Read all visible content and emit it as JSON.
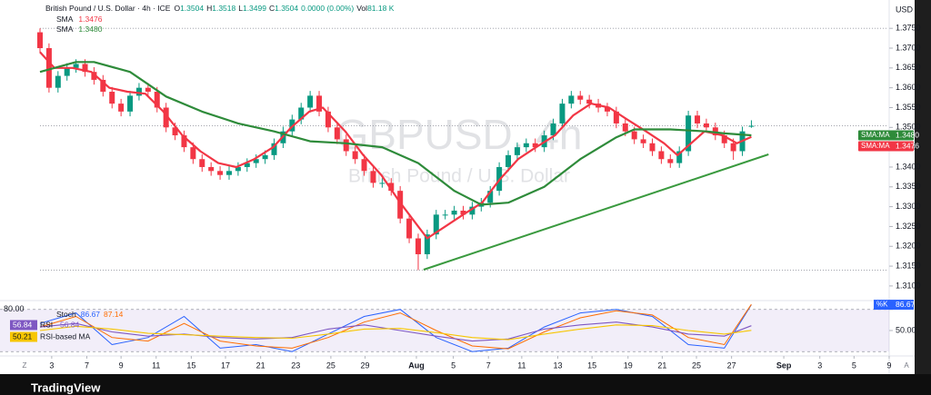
{
  "chart_data": {
    "type": "candlestick",
    "title": "British Pound / U.S. Dollar · 4h · ICE",
    "ohlc_keys": [
      "O",
      "H",
      "L",
      "C"
    ],
    "change": "0.0000 (0.00%)",
    "volume_key": "Vol",
    "volume": "81.18 K",
    "watermark": [
      "GBPUSD, 4h",
      "British Pound / U.S. Dollar"
    ],
    "currency": "USD",
    "tag_label": "SMA:MA",
    "controls": [
      "Z",
      "A"
    ],
    "brand": "TradingView",
    "colors": {
      "up": "#089981",
      "down": "#f23645"
    },
    "grid": false,
    "xlim": [
      0,
      94
    ],
    "ylim": [
      1.307,
      1.381
    ],
    "yticks": [
      {
        "value": 1.375,
        "label": "1.3750"
      },
      {
        "value": 1.37,
        "label": "1.3700"
      },
      {
        "value": 1.365,
        "label": "1.3650"
      },
      {
        "value": 1.36,
        "label": "1.3600"
      },
      {
        "value": 1.355,
        "label": "1.3550"
      },
      {
        "value": 1.35,
        "label": "1.3500"
      },
      {
        "value": 1.345,
        "label": "1.3450"
      },
      {
        "value": 1.34,
        "label": "1.3400"
      },
      {
        "value": 1.335,
        "label": "1.3350"
      },
      {
        "value": 1.33,
        "label": "1.3300"
      },
      {
        "value": 1.325,
        "label": "1.3250"
      },
      {
        "value": 1.32,
        "label": "1.3200"
      },
      {
        "value": 1.315,
        "label": "1.3150"
      },
      {
        "value": 1.31,
        "label": "1.3100"
      }
    ],
    "xticks": [
      {
        "value": 1.3,
        "label": "3"
      },
      {
        "value": 5.2,
        "label": "7"
      },
      {
        "value": 9.0,
        "label": "9"
      },
      {
        "value": 12.9,
        "label": "11"
      },
      {
        "value": 16.8,
        "label": "15"
      },
      {
        "value": 20.6,
        "label": "17"
      },
      {
        "value": 24.5,
        "label": "21"
      },
      {
        "value": 28.4,
        "label": "23"
      },
      {
        "value": 32.3,
        "label": "25"
      },
      {
        "value": 36.1,
        "label": "29"
      },
      {
        "value": 41.8,
        "label": "Aug"
      },
      {
        "value": 45.9,
        "label": "5"
      },
      {
        "value": 49.8,
        "label": "7"
      },
      {
        "value": 53.5,
        "label": "11"
      },
      {
        "value": 57.5,
        "label": "13"
      },
      {
        "value": 61.3,
        "label": "15"
      },
      {
        "value": 65.3,
        "label": "19"
      },
      {
        "value": 69.1,
        "label": "21"
      },
      {
        "value": 72.9,
        "label": "25"
      },
      {
        "value": 76.8,
        "label": "27"
      },
      {
        "value": 82.6,
        "label": "Sep"
      },
      {
        "value": 86.6,
        "label": "3"
      },
      {
        "value": 90.4,
        "label": "5"
      },
      {
        "value": 94.3,
        "label": "9"
      }
    ],
    "reference_lines": [
      1.375,
      1.3504,
      1.314
    ],
    "candles": [
      [
        1.374,
        1.375,
        1.3688,
        1.37
      ],
      [
        1.37,
        1.3712,
        1.3588,
        1.36
      ],
      [
        1.36,
        1.3642,
        1.3588,
        1.363
      ],
      [
        1.363,
        1.3662,
        1.3618,
        1.365
      ],
      [
        1.365,
        1.3672,
        1.3638,
        1.366
      ],
      [
        1.366,
        1.3672,
        1.3628,
        1.364
      ],
      [
        1.364,
        1.3652,
        1.3608,
        1.362
      ],
      [
        1.362,
        1.3632,
        1.3578,
        1.359
      ],
      [
        1.359,
        1.3602,
        1.3548,
        1.356
      ],
      [
        1.356,
        1.3572,
        1.3528,
        1.354
      ],
      [
        1.354,
        1.3592,
        1.3528,
        1.358
      ],
      [
        1.358,
        1.3612,
        1.3568,
        1.36
      ],
      [
        1.36,
        1.3612,
        1.3578,
        1.359
      ],
      [
        1.359,
        1.3602,
        1.3538,
        1.355
      ],
      [
        1.355,
        1.3562,
        1.3488,
        1.35
      ],
      [
        1.35,
        1.3512,
        1.3468,
        1.348
      ],
      [
        1.348,
        1.3492,
        1.3438,
        1.345
      ],
      [
        1.345,
        1.3462,
        1.3408,
        1.342
      ],
      [
        1.342,
        1.3432,
        1.3388,
        1.34
      ],
      [
        1.34,
        1.3412,
        1.3378,
        1.339
      ],
      [
        1.339,
        1.3402,
        1.3368,
        1.338
      ],
      [
        1.338,
        1.3402,
        1.3368,
        1.339
      ],
      [
        1.339,
        1.3412,
        1.3378,
        1.34
      ],
      [
        1.34,
        1.3422,
        1.3388,
        1.341
      ],
      [
        1.341,
        1.3432,
        1.3398,
        1.342
      ],
      [
        1.342,
        1.3442,
        1.3408,
        1.343
      ],
      [
        1.343,
        1.3472,
        1.3418,
        1.346
      ],
      [
        1.346,
        1.3502,
        1.3448,
        1.349
      ],
      [
        1.349,
        1.3532,
        1.3478,
        1.352
      ],
      [
        1.352,
        1.3562,
        1.3508,
        1.355
      ],
      [
        1.355,
        1.3592,
        1.3538,
        1.358
      ],
      [
        1.358,
        1.3592,
        1.3528,
        1.354
      ],
      [
        1.354,
        1.3552,
        1.3488,
        1.35
      ],
      [
        1.35,
        1.3512,
        1.3458,
        1.347
      ],
      [
        1.347,
        1.3482,
        1.3428,
        1.344
      ],
      [
        1.344,
        1.3452,
        1.3408,
        1.342
      ],
      [
        1.342,
        1.3432,
        1.3378,
        1.339
      ],
      [
        1.339,
        1.3402,
        1.3348,
        1.336
      ],
      [
        1.336,
        1.3372,
        1.3348,
        1.336
      ],
      [
        1.336,
        1.3372,
        1.3328,
        1.334
      ],
      [
        1.334,
        1.3352,
        1.3258,
        1.327
      ],
      [
        1.327,
        1.3282,
        1.3208,
        1.322
      ],
      [
        1.322,
        1.3232,
        1.314,
        1.318
      ],
      [
        1.318,
        1.3242,
        1.3168,
        1.323
      ],
      [
        1.323,
        1.3292,
        1.3218,
        1.328
      ],
      [
        1.328,
        1.3292,
        1.3268,
        1.328
      ],
      [
        1.328,
        1.3302,
        1.3268,
        1.329
      ],
      [
        1.329,
        1.3302,
        1.3268,
        1.328
      ],
      [
        1.328,
        1.3312,
        1.3268,
        1.33
      ],
      [
        1.33,
        1.3322,
        1.3288,
        1.331
      ],
      [
        1.331,
        1.3352,
        1.3298,
        1.334
      ],
      [
        1.334,
        1.3412,
        1.3328,
        1.34
      ],
      [
        1.34,
        1.3442,
        1.3388,
        1.343
      ],
      [
        1.343,
        1.3462,
        1.3418,
        1.345
      ],
      [
        1.345,
        1.3472,
        1.3438,
        1.346
      ],
      [
        1.346,
        1.3472,
        1.3438,
        1.345
      ],
      [
        1.345,
        1.3492,
        1.3438,
        1.348
      ],
      [
        1.348,
        1.3522,
        1.3468,
        1.351
      ],
      [
        1.351,
        1.3572,
        1.3498,
        1.356
      ],
      [
        1.356,
        1.3592,
        1.3548,
        1.358
      ],
      [
        1.358,
        1.3592,
        1.3558,
        1.357
      ],
      [
        1.357,
        1.3582,
        1.3548,
        1.356
      ],
      [
        1.356,
        1.3572,
        1.3538,
        1.355
      ],
      [
        1.355,
        1.3562,
        1.3528,
        1.354
      ],
      [
        1.354,
        1.3552,
        1.3498,
        1.351
      ],
      [
        1.351,
        1.3522,
        1.3478,
        1.349
      ],
      [
        1.349,
        1.3502,
        1.3458,
        1.347
      ],
      [
        1.347,
        1.3482,
        1.3448,
        1.346
      ],
      [
        1.346,
        1.3472,
        1.3428,
        1.344
      ],
      [
        1.344,
        1.3452,
        1.3408,
        1.342
      ],
      [
        1.342,
        1.3432,
        1.3398,
        1.341
      ],
      [
        1.341,
        1.3452,
        1.3398,
        1.344
      ],
      [
        1.344,
        1.3542,
        1.3428,
        1.353
      ],
      [
        1.353,
        1.3542,
        1.3498,
        1.351
      ],
      [
        1.351,
        1.3522,
        1.3488,
        1.35
      ],
      [
        1.35,
        1.3512,
        1.3468,
        1.348
      ],
      [
        1.348,
        1.3492,
        1.3448,
        1.346
      ],
      [
        1.346,
        1.3472,
        1.3418,
        1.344
      ],
      [
        1.344,
        1.3502,
        1.3428,
        1.349
      ],
      [
        1.3504,
        1.3518,
        1.3499,
        1.3504
      ]
    ],
    "series": [
      {
        "name": "SMA",
        "color": "#f23645",
        "x": [
          0,
          1.6,
          3.6,
          5.7,
          7.7,
          9.7,
          11.7,
          13.7,
          15.8,
          17.8,
          19.8,
          21.8,
          23.8,
          25.9,
          27.9,
          29.9,
          31.4,
          33.9,
          35.9,
          37.9,
          40.0,
          42.0,
          43.0,
          45.0,
          47.0,
          49.1,
          51.1,
          53.1,
          55.1,
          57.2,
          59.2,
          61.2,
          63.2,
          65.2,
          67.3,
          69.3,
          70.8,
          72.3,
          73.8,
          75.8,
          77.4,
          79
        ],
        "values": [
          1.369,
          1.365,
          1.365,
          1.364,
          1.36,
          1.359,
          1.3585,
          1.354,
          1.348,
          1.344,
          1.341,
          1.34,
          1.342,
          1.345,
          1.35,
          1.354,
          1.355,
          1.349,
          1.343,
          1.338,
          1.331,
          1.325,
          1.322,
          1.325,
          1.328,
          1.331,
          1.337,
          1.342,
          1.345,
          1.348,
          1.353,
          1.356,
          1.355,
          1.352,
          1.349,
          1.346,
          1.343,
          1.346,
          1.349,
          1.348,
          1.346,
          1.3476
        ]
      },
      {
        "name": "SMA",
        "color": "#2e8b3a",
        "value_label": "1.3480",
        "x": [
          0,
          4,
          6,
          10,
          14,
          18,
          22,
          26,
          30,
          34,
          38,
          42,
          46,
          49,
          52,
          56,
          60,
          64,
          66,
          70,
          74,
          76,
          79
        ],
        "values": [
          1.364,
          1.3665,
          1.3665,
          1.364,
          1.3578,
          1.354,
          1.351,
          1.349,
          1.3465,
          1.346,
          1.345,
          1.341,
          1.334,
          1.3305,
          1.331,
          1.335,
          1.342,
          1.3475,
          1.3495,
          1.3495,
          1.349,
          1.3485,
          1.348
        ]
      }
    ],
    "trendline": {
      "color": "#3a9a3f",
      "x": [
        42.6,
        80.9
      ],
      "values": [
        1.3141,
        1.3432
      ]
    },
    "oscillator": {
      "stoch_label": "Stoch",
      "rsi_label": "RSI",
      "rsi_ma_label": "RSI-based MA",
      "ylim": [
        19,
        90
      ],
      "band": [
        20,
        80
      ],
      "yticks": [
        {
          "value": 80,
          "label": "80.00"
        },
        {
          "value": 50,
          "label": "50.00"
        }
      ],
      "x": [
        0,
        4,
        8,
        12,
        16,
        20,
        24,
        28,
        32,
        36,
        40,
        44,
        48,
        52,
        56,
        60,
        64,
        68,
        72,
        76,
        79
      ],
      "series": [
        {
          "name": "%K",
          "color": "#2962ff",
          "values": [
            60,
            75,
            30,
            40,
            70,
            25,
            30,
            20,
            45,
            70,
            80,
            40,
            20,
            25,
            55,
            75,
            80,
            70,
            30,
            25,
            86.67
          ]
        },
        {
          "color": "#ff6d00",
          "values": [
            55,
            70,
            40,
            35,
            60,
            35,
            28,
            25,
            40,
            62,
            75,
            50,
            28,
            24,
            48,
            68,
            78,
            72,
            40,
            30,
            87.14
          ]
        },
        {
          "color": "#7e57c2",
          "values": [
            55,
            60,
            48,
            42,
            45,
            40,
            38,
            40,
            52,
            58,
            50,
            42,
            35,
            38,
            52,
            58,
            62,
            55,
            45,
            42,
            56.84
          ]
        },
        {
          "color": "#f7c600",
          "values": [
            50,
            56,
            52,
            46,
            44,
            42,
            40,
            39,
            45,
            52,
            53,
            47,
            40,
            37,
            45,
            52,
            58,
            57,
            50,
            45,
            50.21
          ]
        }
      ]
    }
  }
}
